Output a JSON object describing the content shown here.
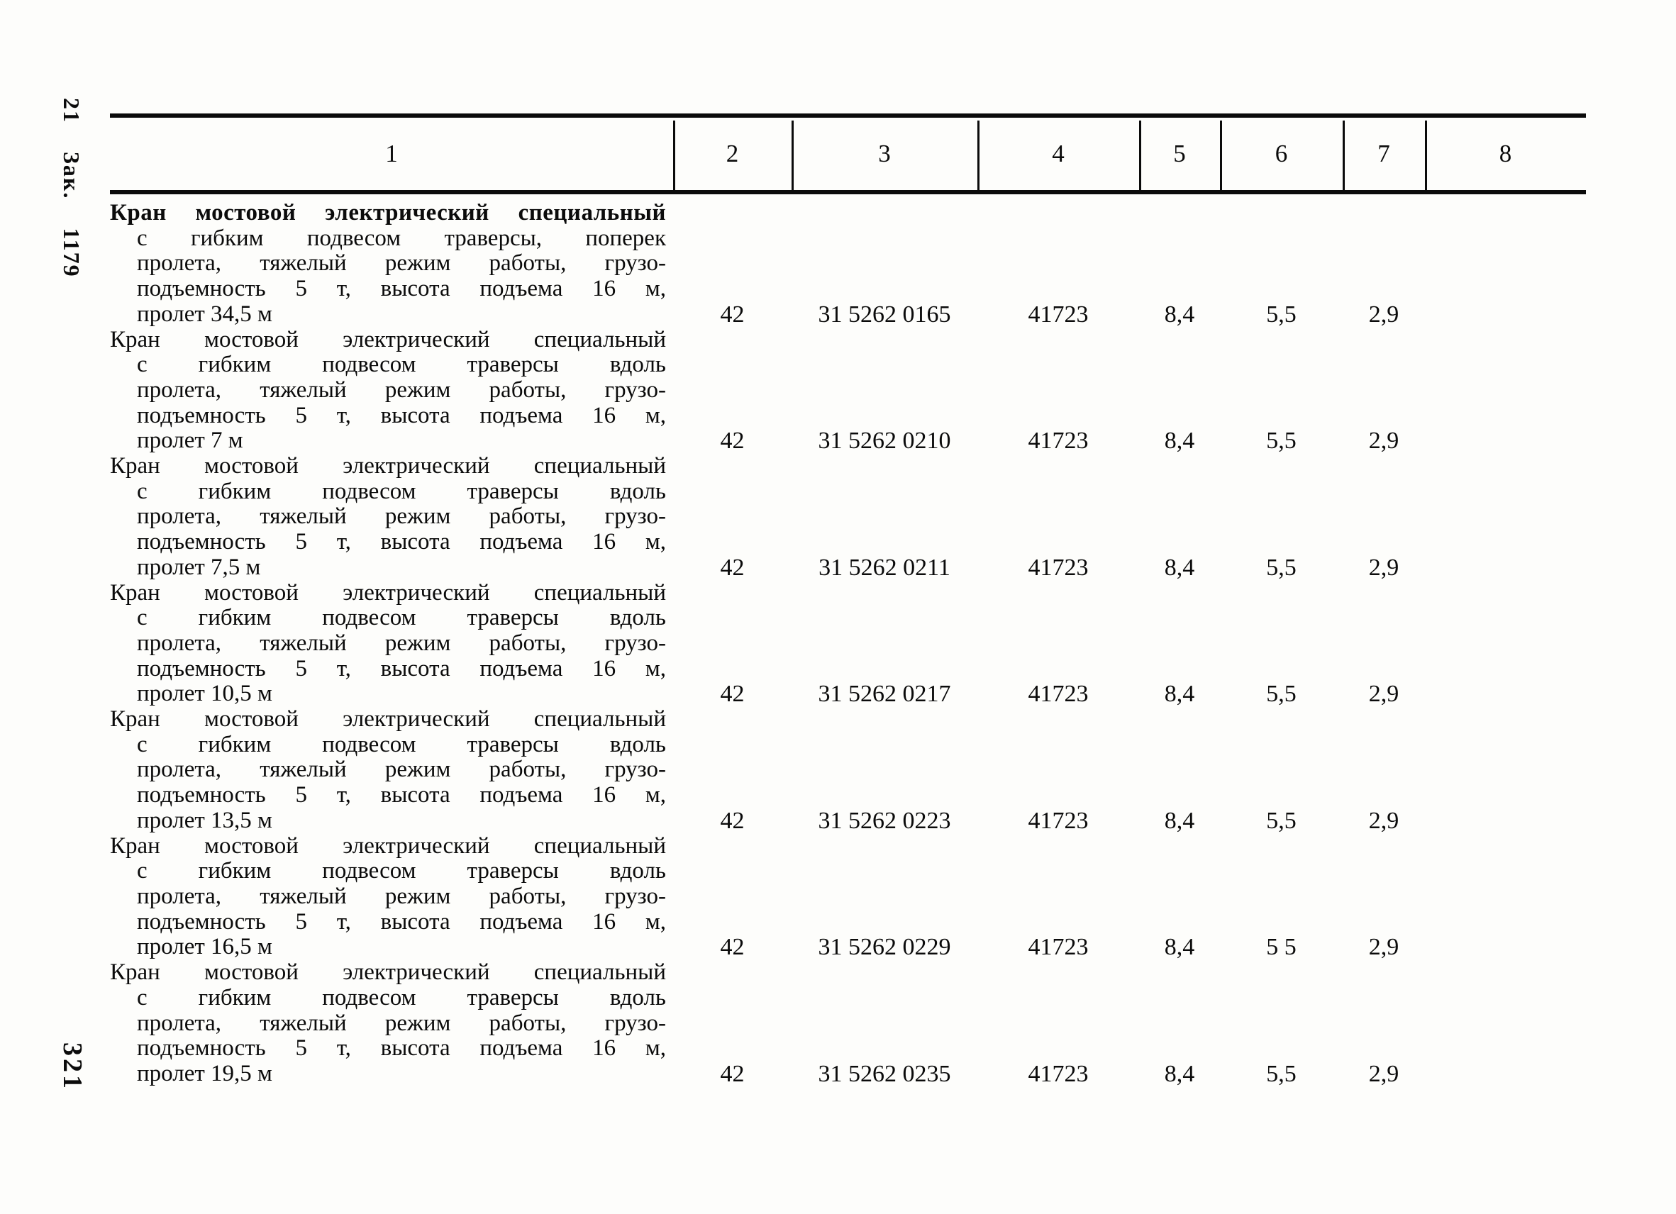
{
  "page": {
    "left_margin_top": "21 Зак. 1179",
    "left_margin_bottom": "321"
  },
  "table": {
    "header": [
      "1",
      "2",
      "3",
      "4",
      "5",
      "6",
      "7",
      "8"
    ],
    "rows": [
      {
        "first_line_bold": true,
        "description_lines": [
          "Кран мостовой электрический специальный",
          "с гибким подвесом траверсы, поперек",
          "пролета, тяжелый режим работы, грузо-",
          "подъемность 5 т, высота подъема 16 м,",
          "пролет 34,5 м"
        ],
        "values": [
          "42",
          "31 5262 0165",
          "41723",
          "8,4",
          "5,5",
          "2,9",
          ""
        ]
      },
      {
        "first_line_bold": false,
        "description_lines": [
          "Кран мостовой электрический специальный",
          "с гибким подвесом траверсы вдоль",
          "пролета, тяжелый режим работы, грузо-",
          "подъемность 5 т, высота подъема 16 м,",
          "пролет 7 м"
        ],
        "values": [
          "42",
          "31 5262 0210",
          "41723",
          "8,4",
          "5,5",
          "2,9",
          ""
        ]
      },
      {
        "first_line_bold": false,
        "description_lines": [
          "Кран мостовой электрический специальный",
          "с гибким подвесом траверсы вдоль",
          "пролета, тяжелый режим работы, грузо-",
          "подъемность 5 т, высота подъема 16 м,",
          "пролет 7,5 м"
        ],
        "values": [
          "42",
          "31 5262 0211",
          "41723",
          "8,4",
          "5,5",
          "2,9",
          ""
        ]
      },
      {
        "first_line_bold": false,
        "description_lines": [
          "Кран мостовой электрический специальный",
          "с гибким подвесом траверсы вдоль",
          "пролета, тяжелый режим работы, грузо-",
          "подъемность 5 т, высота подъема 16 м,",
          "пролет 10,5 м"
        ],
        "values": [
          "42",
          "31 5262 0217",
          "41723",
          "8,4",
          "5,5",
          "2,9",
          ""
        ]
      },
      {
        "first_line_bold": false,
        "description_lines": [
          "Кран мостовой электрический специальный",
          "с гибким подвесом траверсы вдоль",
          "пролета, тяжелый режим работы, грузо-",
          "подъемность 5 т, высота подъема 16 м,",
          "пролет 13,5 м"
        ],
        "values": [
          "42",
          "31 5262 0223",
          "41723",
          "8,4",
          "5,5",
          "2,9",
          ""
        ]
      },
      {
        "first_line_bold": false,
        "description_lines": [
          "Кран мостовой электрический специальный",
          "с гибким подвесом траверсы вдоль",
          "пролета, тяжелый режим работы, грузо-",
          "подъемность 5 т, высота подъема 16 м,",
          "пролет 16,5 м"
        ],
        "values": [
          "42",
          "31 5262 0229",
          "41723",
          "8,4",
          "5 5",
          "2,9",
          ""
        ]
      },
      {
        "first_line_bold": false,
        "description_lines": [
          "Кран мостовой электрический специальный",
          "с гибким подвесом траверсы вдоль",
          "пролета, тяжелый режим работы, грузо-",
          "подъемность 5 т, высота подъема 16 м,",
          "пролет 19,5 м"
        ],
        "values": [
          "42",
          "31 5262 0235",
          "41723",
          "8,4",
          "5,5",
          "2,9",
          ""
        ]
      }
    ]
  }
}
